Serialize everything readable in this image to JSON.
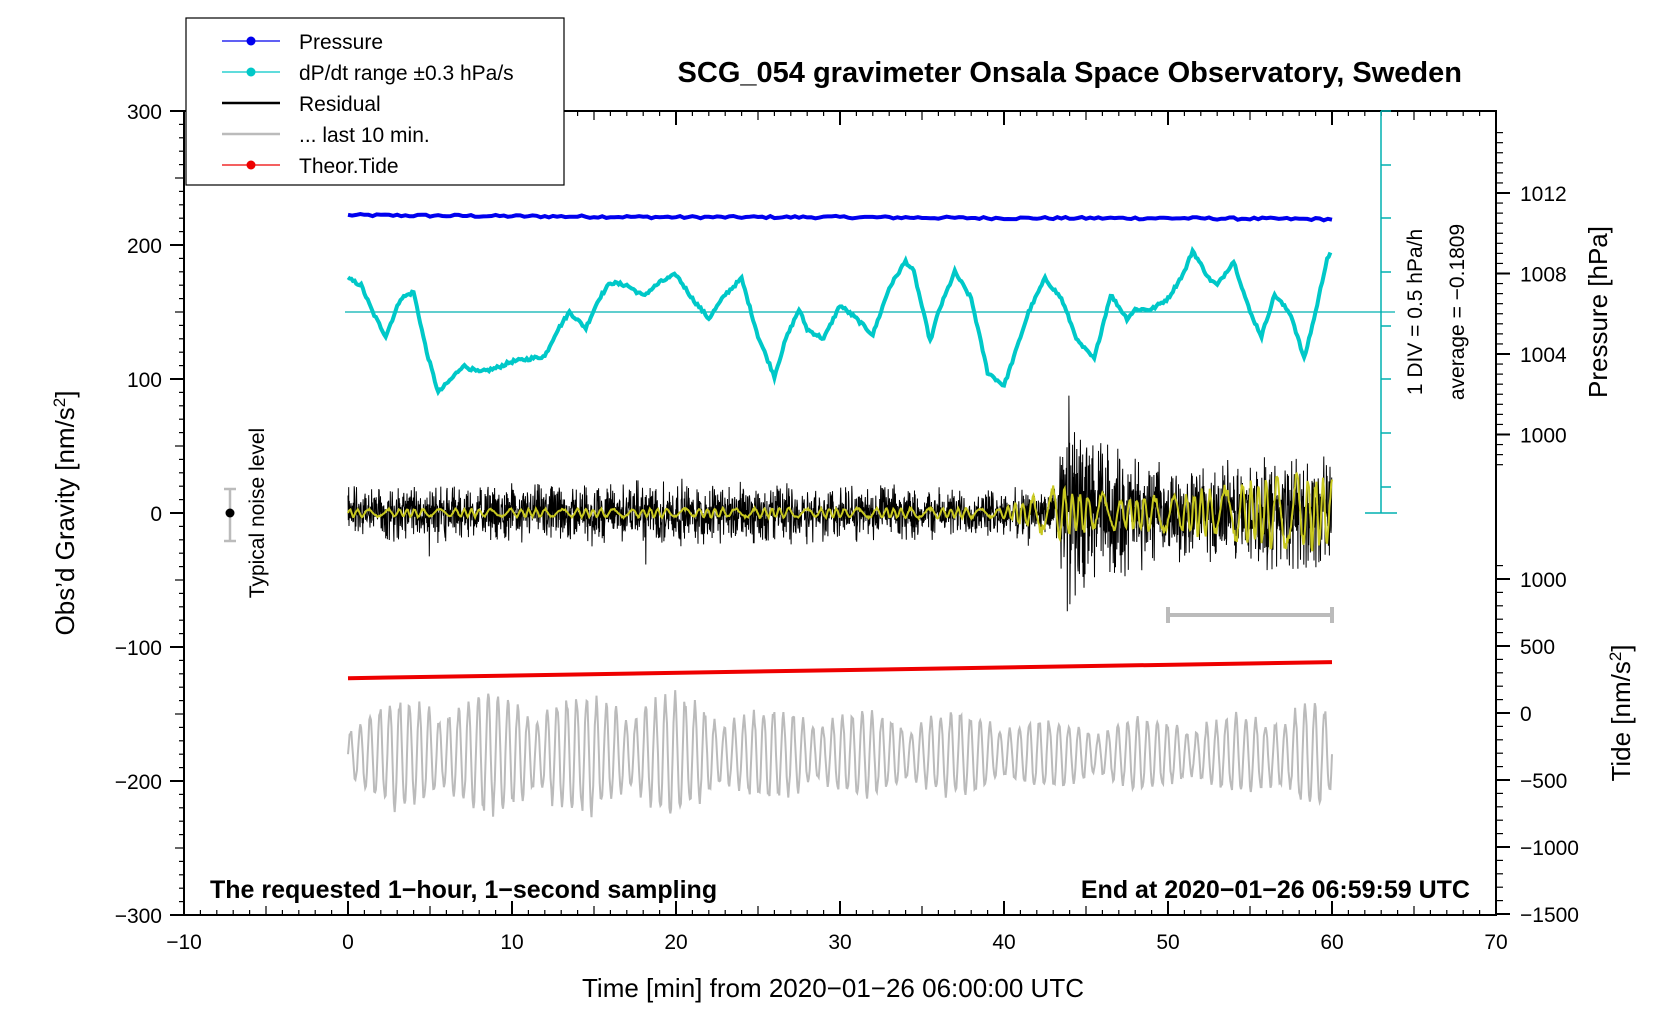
{
  "chart_data": {
    "type": "line",
    "title": "SCG_054 gravimeter Onsala Space Observatory, Sweden",
    "xlabel": "Time [min] from 2020−01−26 06:00:00 UTC",
    "ylabel_left": "Obs’d Gravity [nm/s²]",
    "ylabel_pressure": "Pressure [hPa]",
    "ylabel_tide": "Tide [nm/s²]",
    "xlim": [
      -10,
      70
    ],
    "ylim": [
      -300,
      300
    ],
    "x_ticks": [
      "−10",
      "0",
      "10",
      "20",
      "30",
      "40",
      "50",
      "60",
      "70"
    ],
    "x_tick_values": [
      -10,
      0,
      10,
      20,
      30,
      40,
      50,
      60,
      70
    ],
    "y_ticks": [
      "300",
      "200",
      "100",
      "0",
      "−100",
      "−200",
      "−300"
    ],
    "y_tick_values": [
      300,
      200,
      100,
      0,
      -100,
      -200,
      -300
    ],
    "pressure_ticks": [
      "1012",
      "1008",
      "1004",
      "1000"
    ],
    "pressure_tick_values": [
      1012,
      1008,
      1004,
      1000
    ],
    "tide_ticks": [
      "1000",
      "500",
      "0",
      "−500",
      "−1000",
      "−1500"
    ],
    "tide_tick_values": [
      1000,
      500,
      0,
      -500,
      -1000,
      -1500
    ],
    "legend": [
      {
        "label": "Pressure",
        "color": "#0000ee",
        "marker": true
      },
      {
        "label": "dP/dt range ±0.3 hPa/s",
        "color": "#00c8c8",
        "marker": true
      },
      {
        "label": "Residual",
        "color": "#000000",
        "marker": false
      },
      {
        "label": "... last 10 min.",
        "color": "#bbbbbb",
        "marker": false
      },
      {
        "label": "Theor.Tide",
        "color": "#ee0000",
        "marker": true
      }
    ],
    "annotations": {
      "noise_level": "Typical noise level",
      "div_label": "1 DIV = 0.5 hPa/h",
      "average_label": "average = −0.1809",
      "bottom_left": "The requested 1−hour, 1−second sampling",
      "bottom_right": "End at 2020−01−26 06:59:59 UTC"
    },
    "series": [
      {
        "name": "Pressure",
        "unit": "hPa",
        "color": "#0000ee",
        "x": [
          0,
          10,
          20,
          30,
          40,
          50,
          60
        ],
        "y": [
          1010.9,
          1010.85,
          1010.8,
          1010.8,
          1010.75,
          1010.75,
          1010.7
        ]
      },
      {
        "name": "dP/dt",
        "unit": "nm/s² (plot scale)",
        "color": "#00c8c8",
        "average_level": 150,
        "x": [
          0,
          0.8,
          1.5,
          2.3,
          3.2,
          4,
          4.8,
          5.5,
          6.3,
          7,
          8,
          9,
          10,
          11,
          12,
          12.7,
          13.5,
          14.5,
          15.3,
          16,
          17,
          18,
          19,
          20,
          21,
          22,
          23,
          24,
          25,
          26,
          26.7,
          27.5,
          28,
          29,
          30,
          31,
          32,
          33,
          34,
          34.5,
          35.5,
          36,
          37,
          38,
          39,
          40,
          40.7,
          41.5,
          42.5,
          43.5,
          44.5,
          45.5,
          46.5,
          47.5,
          48,
          49,
          50,
          51,
          51.5,
          52.5,
          53,
          54,
          55,
          55.7,
          56.5,
          57.5,
          58.3,
          59,
          59.7,
          60
        ],
        "y": [
          175,
          170,
          150,
          132,
          160,
          165,
          120,
          90,
          100,
          110,
          105,
          108,
          113,
          115,
          117,
          135,
          150,
          138,
          160,
          172,
          170,
          162,
          172,
          178,
          160,
          145,
          163,
          175,
          132,
          102,
          130,
          152,
          137,
          130,
          155,
          145,
          133,
          168,
          188,
          180,
          128,
          150,
          180,
          160,
          105,
          95,
          120,
          150,
          175,
          160,
          128,
          115,
          163,
          145,
          152,
          152,
          160,
          180,
          196,
          175,
          170,
          188,
          150,
          132,
          163,
          148,
          115,
          150,
          190,
          195
        ]
      },
      {
        "name": "Residual",
        "unit": "nm/s²",
        "color": "#000000",
        "x": [
          0,
          10,
          20,
          30,
          40,
          43.3,
          43.5,
          43.7,
          50,
          55,
          60
        ],
        "y_amplitude": [
          30,
          30,
          35,
          30,
          25,
          30,
          110,
          100,
          45,
          60,
          60
        ],
        "y_mean": 0
      },
      {
        "name": "Residual last 10 min",
        "unit": "nm/s²",
        "color": "#c8c820",
        "x": [
          0,
          40,
          43,
          47,
          53,
          57,
          60
        ],
        "y_amplitude": [
          3,
          4,
          20,
          12,
          18,
          30,
          25
        ],
        "y_mean": 0
      },
      {
        "name": "Theor.Tide",
        "unit": "nm/s²",
        "color": "#ee0000",
        "x": [
          0,
          60
        ],
        "y": [
          260,
          380
        ]
      },
      {
        "name": "last 10 min.",
        "unit": "nm/s² (plot scale)",
        "color": "#bbbbbb",
        "x": [
          0,
          4,
          20,
          24,
          40,
          44,
          56,
          58,
          60
        ],
        "y_amplitude": [
          30,
          45,
          45,
          35,
          30,
          25,
          30,
          50,
          30
        ],
        "y_mean": -180
      }
    ]
  }
}
